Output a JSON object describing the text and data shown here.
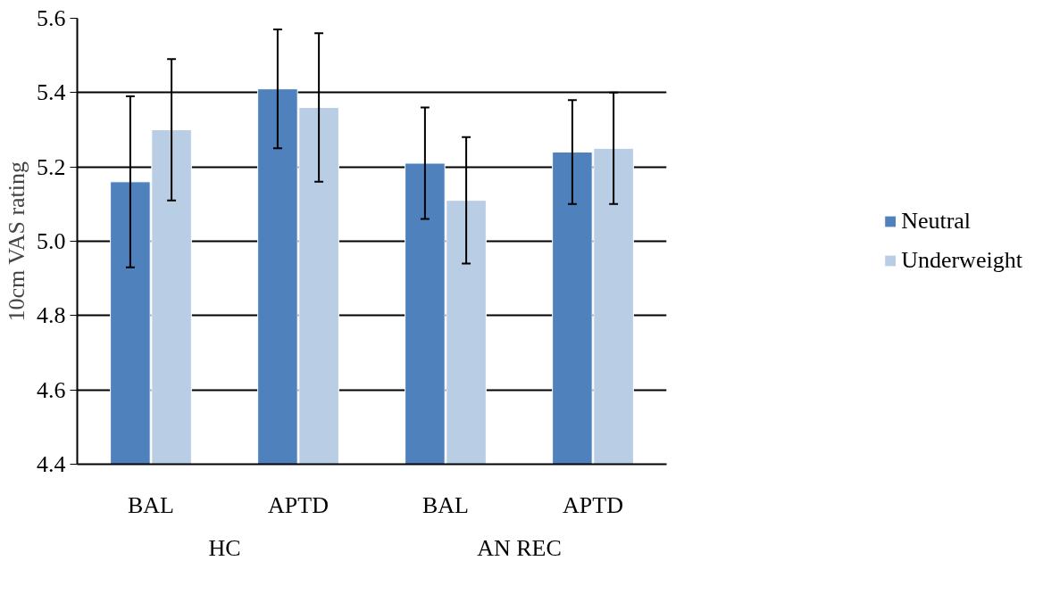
{
  "chart_data": {
    "type": "bar",
    "ylabel": "10cm VAS rating",
    "categories": [
      "BAL",
      "APTD",
      "BAL",
      "APTD"
    ],
    "annotations": [
      "HC",
      "AN REC"
    ],
    "series": [
      {
        "name": "Neutral",
        "color": "#4f81bd",
        "values": [
          5.16,
          5.41,
          5.21,
          5.24
        ],
        "errors": [
          [
            4.93,
            5.39
          ],
          [
            5.25,
            5.57
          ],
          [
            5.06,
            5.36
          ],
          [
            5.1,
            5.38
          ]
        ]
      },
      {
        "name": "Underweight",
        "color": "#b9cde5",
        "values": [
          5.3,
          5.36,
          5.11,
          5.25
        ],
        "errors": [
          [
            5.11,
            5.49
          ],
          [
            5.16,
            5.56
          ],
          [
            4.94,
            5.28
          ],
          [
            5.1,
            5.4
          ]
        ]
      }
    ],
    "ylim": [
      4.4,
      5.6
    ],
    "yticks": [
      4.4,
      4.6,
      4.8,
      {
        "value": 5.0,
        "label": "5.0"
      },
      5.2,
      5.4,
      5.6
    ],
    "grid": "y",
    "legend": "right"
  }
}
